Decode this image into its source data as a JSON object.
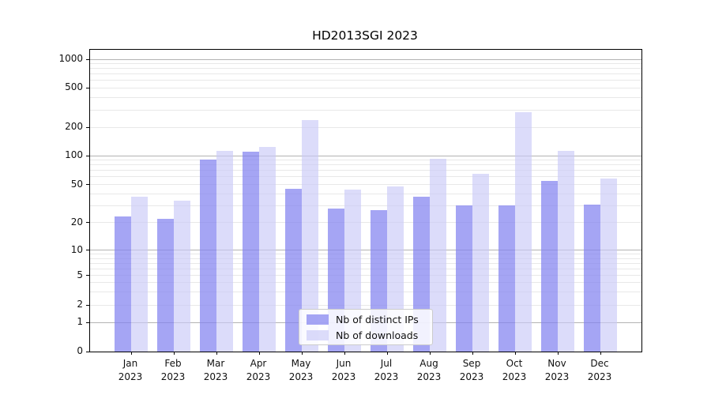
{
  "title": "HD2013SGI 2023",
  "chart_data": {
    "type": "bar",
    "title": "HD2013SGI 2023",
    "categories": [
      "Jan 2023",
      "Feb 2023",
      "Mar 2023",
      "Apr 2023",
      "May 2023",
      "Jun 2023",
      "Jul 2023",
      "Aug 2023",
      "Sep 2023",
      "Oct 2023",
      "Nov 2023",
      "Dec 2023"
    ],
    "x_tick_line1": [
      "Jan",
      "Feb",
      "Mar",
      "Apr",
      "May",
      "Jun",
      "Jul",
      "Aug",
      "Sep",
      "Oct",
      "Nov",
      "Dec"
    ],
    "x_tick_line2": "2023",
    "series": [
      {
        "name": "Nb of distinct IPs",
        "color": "rgba(130,130,240,0.72)",
        "solid_color": "#a5a5f1",
        "values": [
          23,
          22,
          92,
          110,
          45,
          28,
          27,
          37,
          30,
          30,
          54,
          31
        ]
      },
      {
        "name": "Nb of downloads",
        "color": "rgba(202,202,248,0.65)",
        "solid_color": "#dcdcf9",
        "values": [
          37,
          34,
          112,
          125,
          238,
          44,
          48,
          93,
          65,
          285,
          113,
          58
        ]
      }
    ],
    "y_axis": {
      "scale": "symlog",
      "tick_labels": [
        0,
        1,
        2,
        5,
        10,
        20,
        50,
        100,
        200,
        500,
        1000
      ],
      "ylim": [
        0,
        1400
      ]
    },
    "grid": {
      "on": true,
      "major_values": [
        1,
        10,
        100,
        1000
      ],
      "minor_values": [
        2,
        3,
        4,
        5,
        6,
        7,
        8,
        9,
        20,
        30,
        40,
        50,
        60,
        70,
        80,
        90,
        200,
        300,
        400,
        500,
        600,
        700,
        800,
        900
      ]
    },
    "legend": {
      "position": "lower center inside plot",
      "entries": [
        "Nb of distinct IPs",
        "Nb of downloads"
      ]
    }
  },
  "colors": {
    "background": "#ffffff",
    "axis": "#000000",
    "text": "#111111",
    "grid_major": "#b3b3b3",
    "grid_minor": "#e8e8e8",
    "legend_border": "#cccccc",
    "bar_distinct_ips": "rgba(130,130,240,0.72)",
    "bar_downloads": "rgba(202,202,248,0.65)"
  }
}
